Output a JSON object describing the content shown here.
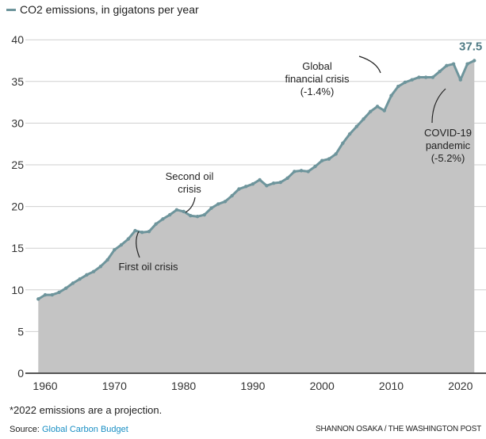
{
  "chart_data": {
    "type": "area",
    "title": "",
    "legend": "CO2 emissions, in gigatons per year",
    "ylim": [
      0,
      40
    ],
    "yticks": [
      0,
      5,
      10,
      15,
      20,
      25,
      30,
      35,
      40
    ],
    "xticks": [
      1960,
      1970,
      1980,
      1990,
      2000,
      2010,
      2020
    ],
    "x": [
      1959,
      1960,
      1961,
      1962,
      1963,
      1964,
      1965,
      1966,
      1967,
      1968,
      1969,
      1970,
      1971,
      1972,
      1973,
      1974,
      1975,
      1976,
      1977,
      1978,
      1979,
      1980,
      1981,
      1982,
      1983,
      1984,
      1985,
      1986,
      1987,
      1988,
      1989,
      1990,
      1991,
      1992,
      1993,
      1994,
      1995,
      1996,
      1997,
      1998,
      1999,
      2000,
      2001,
      2002,
      2003,
      2004,
      2005,
      2006,
      2007,
      2008,
      2009,
      2010,
      2011,
      2012,
      2013,
      2014,
      2015,
      2016,
      2017,
      2018,
      2019,
      2020,
      2021,
      2022
    ],
    "values": [
      8.9,
      9.4,
      9.4,
      9.7,
      10.2,
      10.8,
      11.3,
      11.8,
      12.2,
      12.8,
      13.6,
      14.8,
      15.4,
      16.1,
      17.1,
      16.9,
      17.0,
      17.9,
      18.5,
      19.0,
      19.6,
      19.4,
      18.9,
      18.8,
      19.0,
      19.8,
      20.3,
      20.6,
      21.3,
      22.1,
      22.4,
      22.7,
      23.2,
      22.5,
      22.8,
      22.9,
      23.4,
      24.2,
      24.3,
      24.2,
      24.8,
      25.5,
      25.7,
      26.3,
      27.6,
      28.7,
      29.6,
      30.5,
      31.4,
      32.0,
      31.5,
      33.3,
      34.4,
      34.9,
      35.2,
      35.5,
      35.5,
      35.5,
      36.2,
      36.9,
      37.1,
      35.2,
      37.1,
      37.5
    ],
    "last_label": "37.5",
    "annotations": [
      {
        "text": [
          "First oil crisis"
        ],
        "year": 1974
      },
      {
        "text": [
          "Second oil",
          "crisis"
        ],
        "year": 1982
      },
      {
        "text": [
          "Global",
          "financial crisis",
          "(-1.4%)"
        ],
        "year": 2009
      },
      {
        "text": [
          "COVID-19",
          "pandemic",
          "(-5.2%)"
        ],
        "year": 2020
      }
    ],
    "colors": {
      "line": "#6e959c",
      "fill": "#c4c4c4",
      "label": "#4e7a84"
    }
  },
  "footnote": "*2022 emissions are a projection.",
  "source_prefix": "Source: ",
  "source_link": "Global Carbon Budget",
  "credit": "SHANNON OSAKA / THE WASHINGTON POST"
}
